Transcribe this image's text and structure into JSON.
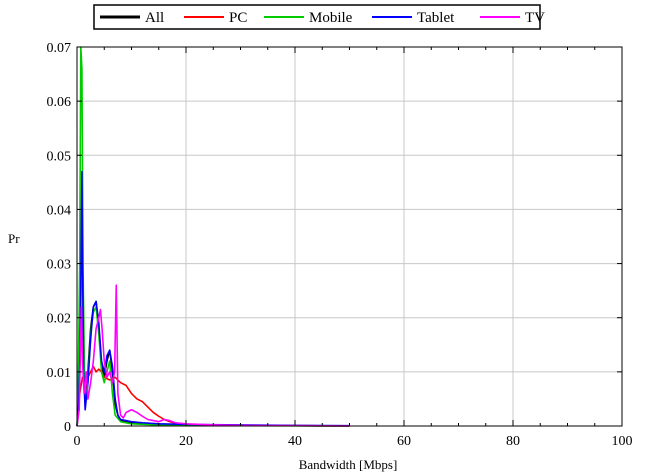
{
  "chart_data": {
    "type": "line",
    "title": "",
    "xlabel": "Bandwidth [Mbps]",
    "ylabel": "Pr",
    "xlim": [
      0,
      100
    ],
    "ylim": [
      0,
      0.07
    ],
    "xticks": [
      0,
      20,
      40,
      60,
      80,
      100
    ],
    "xtick_labels": [
      "0",
      "20",
      "40",
      "60",
      "80",
      "100"
    ],
    "yticks": [
      0,
      0.01,
      0.02,
      0.03,
      0.04,
      0.05,
      0.06,
      0.07
    ],
    "ytick_labels": [
      "0",
      "0.01",
      "0.02",
      "0.03",
      "0.04",
      "0.05",
      "0.06",
      "0.07"
    ],
    "grid": true,
    "legend_position": "top-center",
    "series": [
      {
        "name": "All",
        "color": "#000000",
        "x": [
          0,
          0.3,
          0.6,
          0.9,
          1.2,
          1.5,
          2,
          2.5,
          3,
          3.5,
          4,
          4.5,
          5,
          5.5,
          6,
          6.5,
          7,
          7.5,
          8,
          9,
          10,
          12,
          15,
          20,
          30,
          40,
          50
        ],
        "y": [
          0,
          0.003,
          0.014,
          0.045,
          0.012,
          0.004,
          0.01,
          0.018,
          0.022,
          0.023,
          0.018,
          0.011,
          0.009,
          0.012,
          0.014,
          0.01,
          0.004,
          0.002,
          0.001,
          0.0008,
          0.0006,
          0.0004,
          0.0003,
          0.0002,
          0.0001,
          5e-05,
          2e-05
        ]
      },
      {
        "name": "PC",
        "color": "#ff0000",
        "x": [
          0,
          0.5,
          1,
          1.5,
          2,
          2.5,
          3,
          3.5,
          4,
          4.5,
          5,
          6,
          7,
          8,
          9,
          10,
          11,
          12,
          13,
          14,
          15,
          16,
          17,
          18,
          20,
          25,
          30,
          40,
          50
        ],
        "y": [
          0,
          0.006,
          0.009,
          0.008,
          0.009,
          0.01,
          0.011,
          0.01,
          0.0105,
          0.01,
          0.009,
          0.0085,
          0.009,
          0.008,
          0.0075,
          0.006,
          0.005,
          0.0045,
          0.0035,
          0.0025,
          0.0018,
          0.0012,
          0.0008,
          0.0005,
          0.0003,
          0.0002,
          0.0001,
          5e-05,
          2e-05
        ]
      },
      {
        "name": "Mobile",
        "color": "#00cc00",
        "x": [
          0,
          0.2,
          0.5,
          0.7,
          0.9,
          1.1,
          1.4,
          1.8,
          2.2,
          2.6,
          3,
          3.5,
          4,
          4.5,
          5,
          5.5,
          6,
          6.5,
          7,
          8,
          10,
          15,
          20,
          30,
          50
        ],
        "y": [
          0,
          0.005,
          0.03,
          0.07,
          0.066,
          0.03,
          0.008,
          0.005,
          0.012,
          0.018,
          0.021,
          0.022,
          0.017,
          0.01,
          0.008,
          0.01,
          0.012,
          0.006,
          0.002,
          0.0008,
          0.0004,
          0.0002,
          0.0001,
          5e-05,
          2e-05
        ]
      },
      {
        "name": "Tablet",
        "color": "#0000ff",
        "x": [
          0,
          0.3,
          0.6,
          0.9,
          1.2,
          1.5,
          2,
          2.5,
          3,
          3.5,
          4,
          4.5,
          5,
          5.5,
          6,
          6.5,
          7,
          7.5,
          8,
          9,
          10,
          12,
          15,
          20,
          30,
          40,
          50
        ],
        "y": [
          0,
          0.004,
          0.015,
          0.047,
          0.01,
          0.003,
          0.008,
          0.016,
          0.022,
          0.023,
          0.019,
          0.012,
          0.01,
          0.013,
          0.014,
          0.011,
          0.005,
          0.002,
          0.0012,
          0.001,
          0.0008,
          0.0006,
          0.0004,
          0.0003,
          0.0002,
          0.0001,
          5e-05
        ]
      },
      {
        "name": "TV",
        "color": "#ff00ff",
        "x": [
          0,
          0.4,
          0.8,
          1,
          1.3,
          1.7,
          2,
          2.5,
          3,
          3.5,
          4,
          4.3,
          4.6,
          5,
          5.5,
          6,
          6.5,
          6.9,
          7.2,
          7.5,
          8,
          8.5,
          9,
          10,
          11,
          12,
          13,
          14,
          15,
          16,
          17,
          18,
          20,
          25,
          30,
          40,
          50
        ],
        "y": [
          0,
          0.003,
          0.022,
          0.012,
          0.006,
          0.01,
          0.005,
          0.008,
          0.012,
          0.018,
          0.02,
          0.0215,
          0.018,
          0.012,
          0.009,
          0.01,
          0.008,
          0.01,
          0.026,
          0.006,
          0.002,
          0.0015,
          0.0025,
          0.003,
          0.0025,
          0.0018,
          0.0012,
          0.001,
          0.0008,
          0.0012,
          0.001,
          0.0006,
          0.0004,
          0.0002,
          0.0001,
          5e-05,
          2e-05
        ]
      }
    ]
  }
}
